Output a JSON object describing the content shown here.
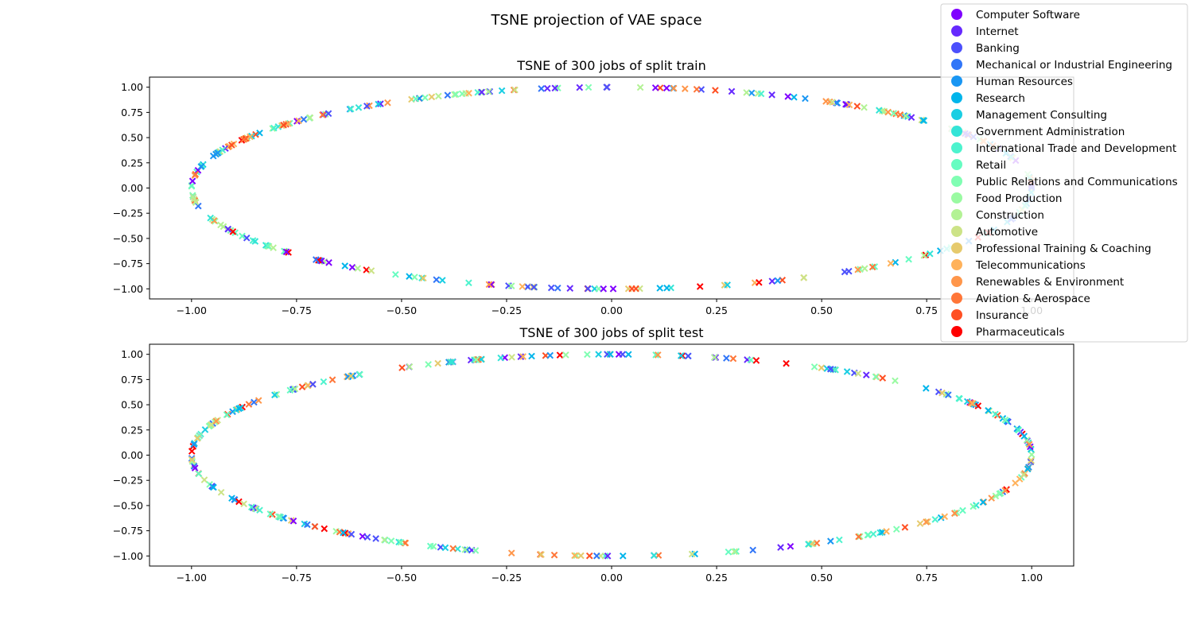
{
  "figure": {
    "suptitle": "TSNE projection of VAE space"
  },
  "chart_data": [
    {
      "type": "scatter",
      "title": "TSNE of 300 jobs of split train",
      "xlabel": "",
      "ylabel": "",
      "xlim": [
        -1.1,
        1.1
      ],
      "ylim": [
        -1.1,
        1.1
      ],
      "xticks": [
        -1.0,
        -0.75,
        -0.5,
        -0.25,
        0.0,
        0.25,
        0.5,
        0.75,
        1.0
      ],
      "xtick_labels": [
        "−1.00",
        "−0.75",
        "−0.50",
        "−0.25",
        "0.00",
        "0.25",
        "0.50",
        "0.75",
        "1.00"
      ],
      "yticks": [
        -1.0,
        -0.75,
        -0.5,
        -0.25,
        0.0,
        0.25,
        0.5,
        0.75,
        1.0
      ],
      "ytick_labels": [
        "−1.00",
        "−0.75",
        "−0.50",
        "−0.25",
        "0.00",
        "0.25",
        "0.50",
        "0.75",
        "1.00"
      ],
      "marker": "x",
      "grid": false,
      "num_points": 300,
      "seed": 11
    },
    {
      "type": "scatter",
      "title": "TSNE of 300 jobs of split test",
      "xlabel": "",
      "ylabel": "",
      "xlim": [
        -1.1,
        1.1
      ],
      "ylim": [
        -1.1,
        1.1
      ],
      "xticks": [
        -1.0,
        -0.75,
        -0.5,
        -0.25,
        0.0,
        0.25,
        0.5,
        0.75,
        1.0
      ],
      "xtick_labels": [
        "−1.00",
        "−0.75",
        "−0.50",
        "−0.25",
        "0.00",
        "0.25",
        "0.50",
        "0.75",
        "1.00"
      ],
      "yticks": [
        -1.0,
        -0.75,
        -0.5,
        -0.25,
        0.0,
        0.25,
        0.5,
        0.75,
        1.0
      ],
      "ytick_labels": [
        "−1.00",
        "−0.75",
        "−0.50",
        "−0.25",
        "0.00",
        "0.25",
        "0.50",
        "0.75",
        "1.00"
      ],
      "marker": "x",
      "grid": false,
      "num_points": 300,
      "seed": 29
    }
  ],
  "legend": {
    "placement": "top-right",
    "entries": [
      {
        "label": "Computer Software",
        "color": "#7f00ff"
      },
      {
        "label": "Internet",
        "color": "#6629fe"
      },
      {
        "label": "Banking",
        "color": "#4c50fc"
      },
      {
        "label": "Mechanical or Industrial Engineering",
        "color": "#3176f8"
      },
      {
        "label": "Human Resources",
        "color": "#1996f3"
      },
      {
        "label": "Research",
        "color": "#00b5eb"
      },
      {
        "label": "Management Consulting",
        "color": "#1acee3"
      },
      {
        "label": "Government Administration",
        "color": "#33e4d7"
      },
      {
        "label": "International Trade and Development",
        "color": "#4df3ce"
      },
      {
        "label": "Retail",
        "color": "#66fcc1"
      },
      {
        "label": "Public Relations and Communications",
        "color": "#80feb3"
      },
      {
        "label": "Food Production",
        "color": "#9afaa2"
      },
      {
        "label": "Construction",
        "color": "#b3f295"
      },
      {
        "label": "Automotive",
        "color": "#cce387"
      },
      {
        "label": "Professional Training & Coaching",
        "color": "#e6ca6d"
      },
      {
        "label": "Telecommunications",
        "color": "#ffb25b"
      },
      {
        "label": "Renewables & Environment",
        "color": "#ff964a"
      },
      {
        "label": "Aviation & Aerospace",
        "color": "#ff7638"
      },
      {
        "label": "Insurance",
        "color": "#ff5023"
      },
      {
        "label": "Pharmaceuticals",
        "color": "#ff0000"
      }
    ]
  }
}
